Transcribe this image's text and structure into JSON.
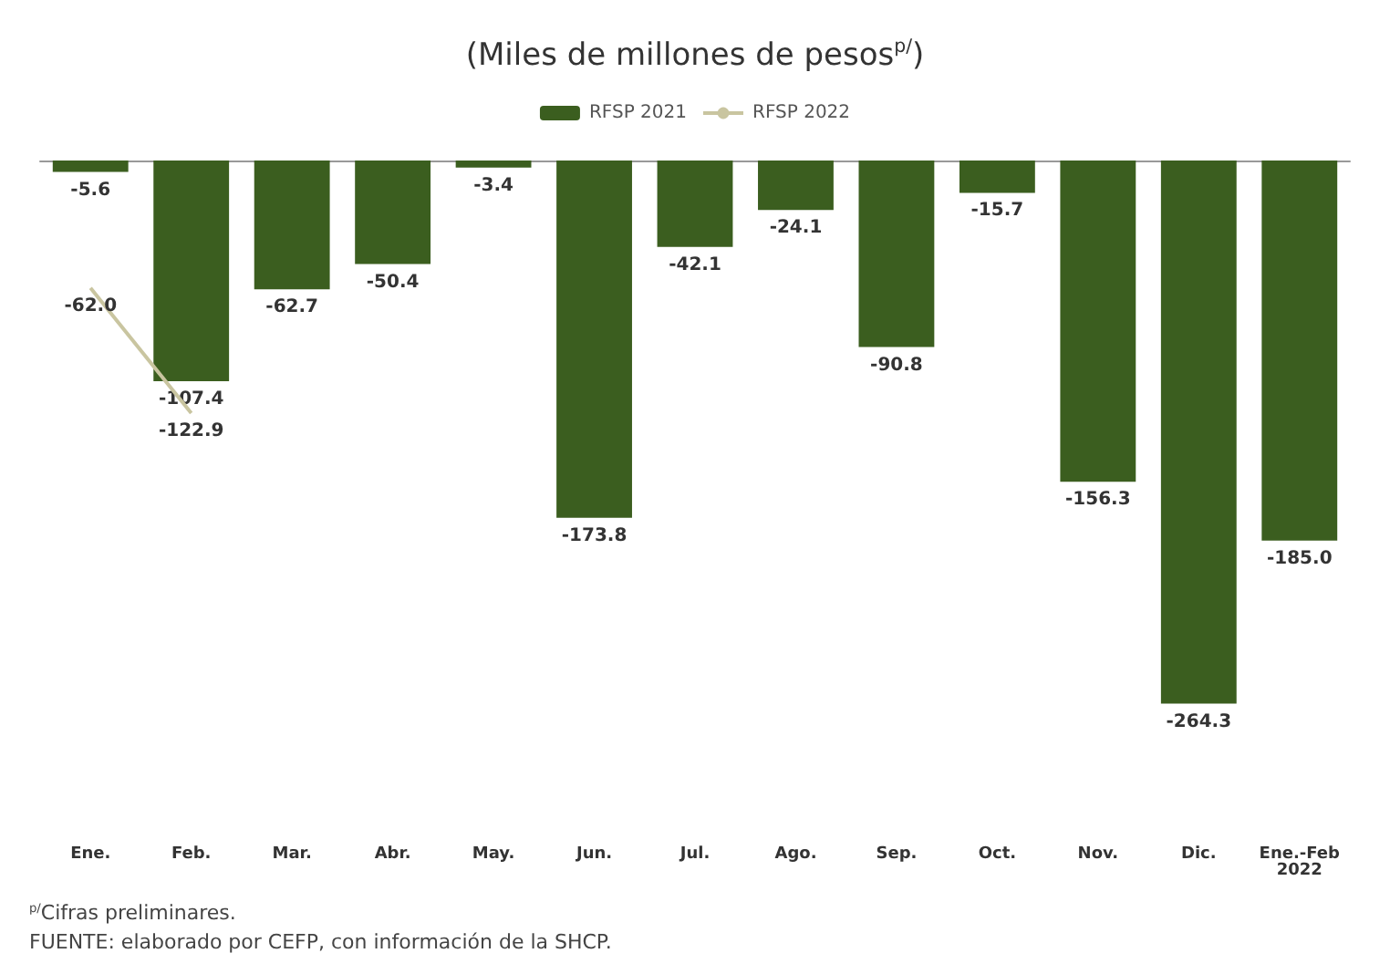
{
  "chart_data": {
    "type": "bar",
    "title": "(Miles de millones de pesos$^{p/}$)",
    "categories": [
      "Ene.",
      "Feb.",
      "Mar.",
      "Abr.",
      "May.",
      "Jun.",
      "Jul.",
      "Ago.",
      "Sep.",
      "Oct.",
      "Nov.",
      "Dic.",
      "Ene.-Feb\n2022"
    ],
    "series": [
      {
        "name": "RFSP 2021",
        "color": "#3b5e1f",
        "values": [
          -5.6,
          -107.4,
          -62.7,
          -50.4,
          -3.4,
          -173.8,
          -42.1,
          -24.1,
          -90.8,
          -15.7,
          -156.3,
          -264.3,
          -185
        ],
        "value_labels": [
          "-5.6",
          "-107.4",
          "-62.7",
          "-50.4",
          "-3.4",
          "-173.8",
          "-42.1",
          "-24.1",
          "-90.8",
          "-15.7",
          "-156.3",
          "-264.3",
          "-185.0"
        ]
      },
      {
        "name": "RFSP 2022",
        "type": "line",
        "color": "#c9c5a0",
        "values": [
          -62,
          -122.9,
          null,
          null,
          null,
          null,
          null,
          null,
          null,
          null,
          null,
          null,
          null
        ],
        "value_labels": [
          "-62.0",
          "-122.9",
          null,
          null,
          null,
          null,
          null,
          null,
          null,
          null,
          null,
          null,
          null
        ]
      }
    ],
    "legend": "top",
    "tick_labels": "x",
    "marker": "none",
    "annotations": [
      "$^{p/}$Cifras preliminares.",
      "FUENTE: elaborado por CEFP, con información de la SHCP."
    ]
  }
}
